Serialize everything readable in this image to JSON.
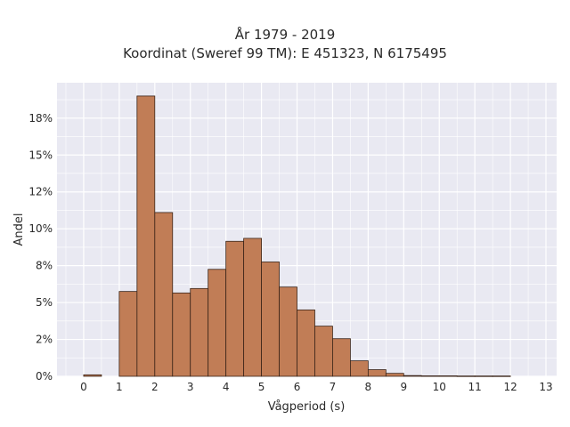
{
  "chart_data": {
    "type": "bar",
    "title_lines": [
      "År 1979 - 2019",
      "Koordinat (Sweref 99 TM): E 451323, N 6175495"
    ],
    "xlabel": "Vågperiod (s)",
    "ylabel": "Andel",
    "xlim": [
      -0.75,
      13.3
    ],
    "ylim": [
      0,
      0.199
    ],
    "x_ticks": [
      0,
      1,
      2,
      3,
      4,
      5,
      6,
      7,
      8,
      9,
      10,
      11,
      12,
      13
    ],
    "x_tick_labels": [
      "0",
      "1",
      "2",
      "3",
      "4",
      "5",
      "6",
      "7",
      "8",
      "9",
      "10",
      "11",
      "12",
      "13"
    ],
    "y_ticks": [
      0,
      0.025,
      0.05,
      0.075,
      0.1,
      0.125,
      0.15,
      0.175
    ],
    "y_tick_labels": [
      "0%",
      "2%",
      "5%",
      "8%",
      "10%",
      "12%",
      "15%",
      "18%"
    ],
    "bin_width": 0.5,
    "bins": [
      {
        "start": 0.0,
        "value": 0.001
      },
      {
        "start": 0.5,
        "value": 0.0
      },
      {
        "start": 1.0,
        "value": 0.0575
      },
      {
        "start": 1.5,
        "value": 0.19
      },
      {
        "start": 2.0,
        "value": 0.111
      },
      {
        "start": 2.5,
        "value": 0.0565
      },
      {
        "start": 3.0,
        "value": 0.0595
      },
      {
        "start": 3.5,
        "value": 0.0725
      },
      {
        "start": 4.0,
        "value": 0.0915
      },
      {
        "start": 4.5,
        "value": 0.0935
      },
      {
        "start": 5.0,
        "value": 0.0775
      },
      {
        "start": 5.5,
        "value": 0.0605
      },
      {
        "start": 6.0,
        "value": 0.045
      },
      {
        "start": 6.5,
        "value": 0.034
      },
      {
        "start": 7.0,
        "value": 0.0255
      },
      {
        "start": 7.5,
        "value": 0.0105
      },
      {
        "start": 8.0,
        "value": 0.0045
      },
      {
        "start": 8.5,
        "value": 0.002
      },
      {
        "start": 9.0,
        "value": 0.0005
      },
      {
        "start": 9.5,
        "value": 0.0003
      },
      {
        "start": 10.0,
        "value": 0.0003
      },
      {
        "start": 10.5,
        "value": 0.0002
      },
      {
        "start": 11.0,
        "value": 0.0002
      },
      {
        "start": 11.5,
        "value": 0.0002
      }
    ],
    "bar_color": "#c17d56",
    "bar_edge_color": "#3a2418",
    "plot_background": "#e9e9f2",
    "grid": true,
    "grid_color": "#ffffff"
  }
}
